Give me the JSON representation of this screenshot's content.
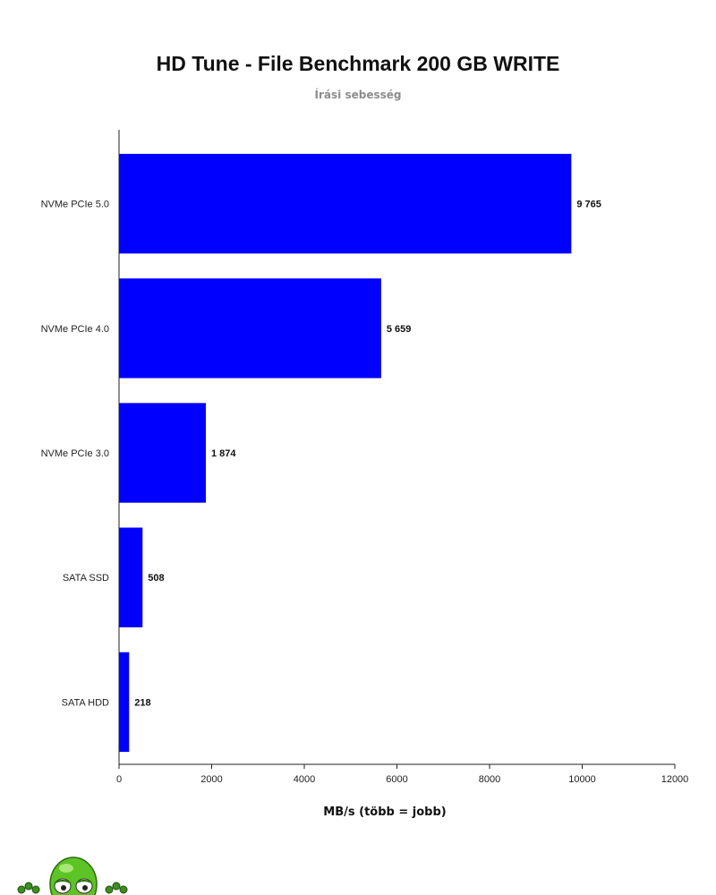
{
  "chart_data": {
    "type": "bar",
    "orientation": "horizontal",
    "title": "HD Tune - File Benchmark 200 GB WRITE",
    "subtitle": "Írási sebesség",
    "xlabel": "MB/s (több = jobb)",
    "ylabel": "",
    "categories": [
      "NVMe PCIe 5.0",
      "NVMe PCIe 4.0",
      "NVMe PCIe 3.0",
      "SATA SSD",
      "SATA HDD"
    ],
    "values": [
      9765,
      5659,
      1874,
      508,
      218
    ],
    "data_labels": [
      "9 765",
      "5 659",
      "1 874",
      "508",
      "218"
    ],
    "xlim": [
      0,
      12000
    ],
    "xticks": [
      0,
      2000,
      4000,
      6000,
      8000,
      10000,
      12000
    ],
    "xtick_labels": [
      "0",
      "2000",
      "4000",
      "6000",
      "8000",
      "10000",
      "12000"
    ],
    "grid": false,
    "legend": "none",
    "bar_color": "#0000ff"
  }
}
